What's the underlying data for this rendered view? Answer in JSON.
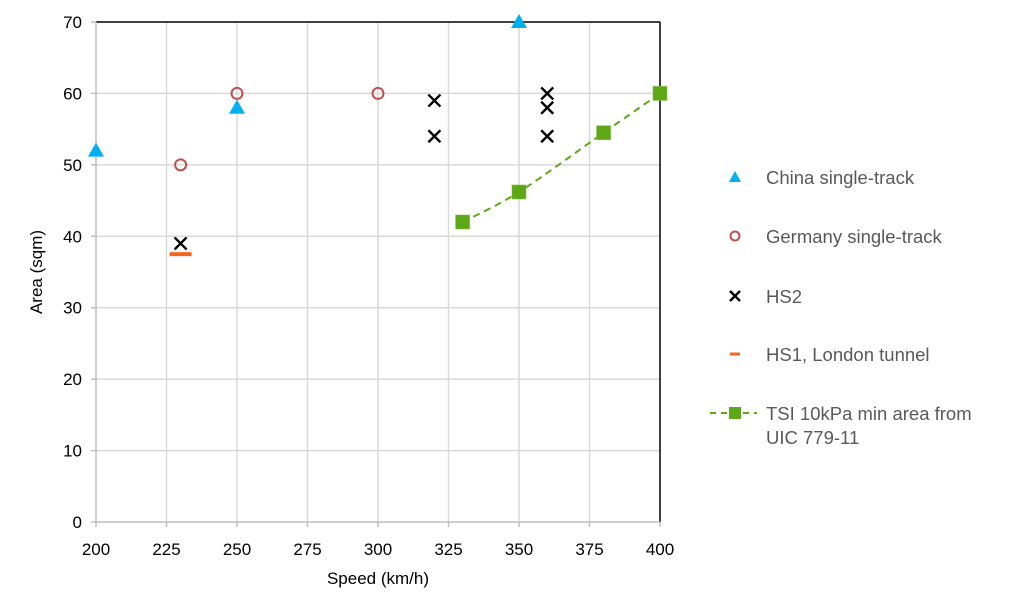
{
  "chart_data": {
    "type": "scatter",
    "title": "",
    "xlabel": "Speed (km/h)",
    "ylabel": "Area (sqm)",
    "xlim": [
      200,
      400
    ],
    "ylim": [
      0,
      70
    ],
    "xticks": [
      200,
      225,
      250,
      275,
      300,
      325,
      350,
      375,
      400
    ],
    "yticks": [
      0,
      10,
      20,
      30,
      40,
      50,
      60,
      70
    ],
    "grid": true,
    "legend_position": "right",
    "series": [
      {
        "name": "China single-track",
        "marker": "triangle",
        "color": "#00B0F0",
        "points": [
          [
            200,
            52
          ],
          [
            250,
            58
          ],
          [
            350,
            70
          ]
        ]
      },
      {
        "name": "Germany single-track",
        "marker": "circle-open",
        "color": "#C0504D",
        "points": [
          [
            230,
            50
          ],
          [
            250,
            60
          ],
          [
            300,
            60
          ]
        ]
      },
      {
        "name": "HS2",
        "marker": "x",
        "color": "#000000",
        "points": [
          [
            230,
            39
          ],
          [
            320,
            59
          ],
          [
            320,
            54
          ],
          [
            360,
            60
          ],
          [
            360,
            58
          ],
          [
            360,
            54
          ]
        ]
      },
      {
        "name": "HS1, London tunnel",
        "marker": "dash",
        "color": "#F26522",
        "points": [
          [
            230,
            37.5
          ]
        ]
      },
      {
        "name": "TSI 10kPa min area from UIC 779-11",
        "marker": "square",
        "line": "dashed",
        "color": "#5EA716",
        "points": [
          [
            330,
            42
          ],
          [
            350,
            46.2
          ],
          [
            380,
            54.5
          ],
          [
            400,
            60
          ]
        ]
      }
    ]
  },
  "legend": {
    "items": [
      {
        "label_lines": [
          "China single-track"
        ]
      },
      {
        "label_lines": [
          "Germany single-track"
        ]
      },
      {
        "label_lines": [
          "HS2"
        ]
      },
      {
        "label_lines": [
          "HS1, London tunnel"
        ]
      },
      {
        "label_lines": [
          "TSI 10kPa min area from",
          "UIC 779-11"
        ]
      }
    ]
  }
}
